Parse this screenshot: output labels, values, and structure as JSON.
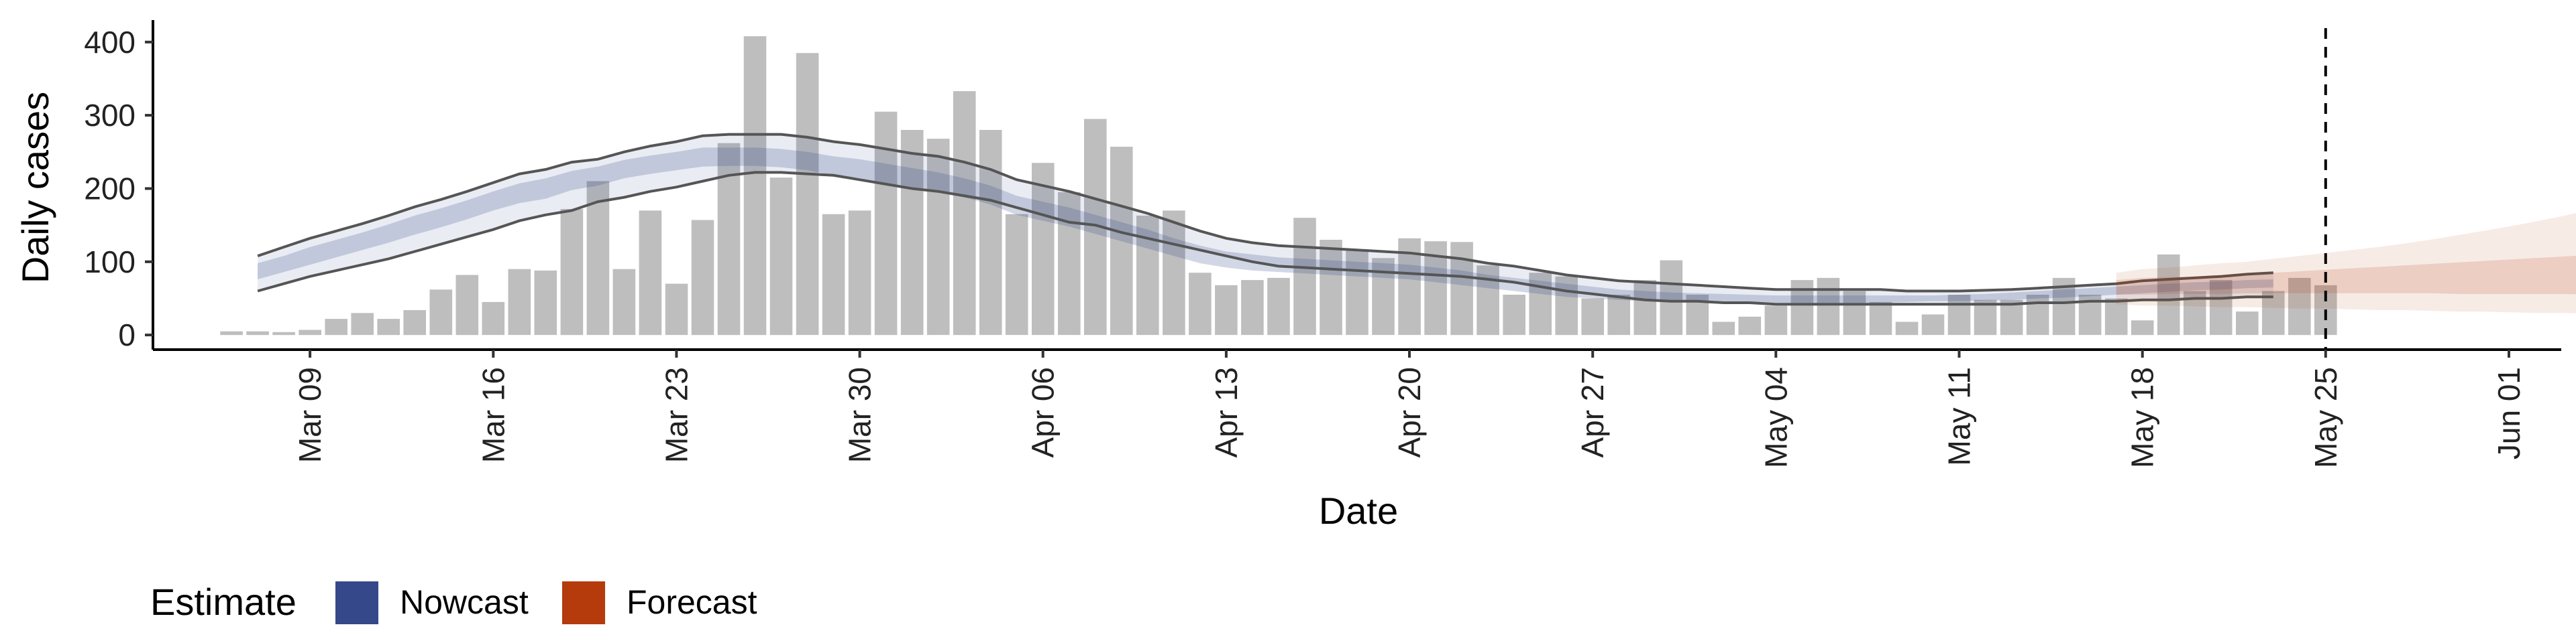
{
  "chart_data": {
    "type": "bar",
    "xlabel": "Date",
    "ylabel": "Daily cases",
    "ylim": [
      -20,
      430
    ],
    "y_ticks": [
      0,
      100,
      200,
      300,
      400
    ],
    "x_ticks": [
      "Mar 09",
      "Mar 16",
      "Mar 23",
      "Mar 30",
      "Apr 06",
      "Apr 13",
      "Apr 20",
      "Apr 27",
      "May 04",
      "May 11",
      "May 18",
      "May 25",
      "Jun 01"
    ],
    "xlim_dates": [
      "2020-03-03",
      "2020-06-03"
    ],
    "x_ticks_dates": [
      "2020-03-09",
      "2020-03-16",
      "2020-03-23",
      "2020-03-30",
      "2020-04-06",
      "2020-04-13",
      "2020-04-20",
      "2020-04-27",
      "2020-05-04",
      "2020-05-11",
      "2020-05-18",
      "2020-05-25",
      "2020-06-01"
    ],
    "vline_date": "2020-05-25",
    "grid": false,
    "legend": {
      "title": "Estimate",
      "position": "bottom",
      "items": [
        {
          "label": "Nowcast",
          "color": "#34488a"
        },
        {
          "label": "Forecast",
          "color": "#b53a0c"
        }
      ]
    },
    "colors": {
      "bars": "#bebebe",
      "nowcast": "#34488a",
      "forecast": "#b53a0c",
      "outline": "#555555",
      "vline": "#000000"
    },
    "bars": {
      "start_date": "2020-03-06",
      "values": [
        5,
        5,
        4,
        7,
        22,
        30,
        22,
        34,
        62,
        82,
        45,
        90,
        88,
        172,
        210,
        90,
        170,
        70,
        157,
        262,
        408,
        215,
        385,
        165,
        170,
        305,
        280,
        268,
        333,
        280,
        165,
        235,
        195,
        295,
        257,
        163,
        170,
        85,
        68,
        75,
        78,
        160,
        130,
        115,
        105,
        132,
        128,
        127,
        95,
        55,
        85,
        80,
        50,
        55,
        75,
        102,
        55,
        18,
        25,
        40,
        75,
        78,
        60,
        45,
        18,
        28,
        55,
        48,
        48,
        55,
        78,
        55,
        50,
        20,
        110,
        60,
        75,
        32,
        60,
        78,
        68
      ]
    },
    "series": [
      {
        "name": "Nowcast",
        "start_date": "2020-03-07",
        "outer_upper": [
          108,
          120,
          132,
          142,
          152,
          163,
          175,
          185,
          196,
          208,
          220,
          226,
          236,
          240,
          250,
          258,
          264,
          272,
          274,
          274,
          274,
          270,
          264,
          260,
          254,
          248,
          244,
          236,
          226,
          212,
          204,
          196,
          186,
          176,
          166,
          154,
          142,
          132,
          126,
          122,
          120,
          118,
          116,
          114,
          112,
          108,
          104,
          98,
          94,
          88,
          82,
          78,
          74,
          72,
          70,
          68,
          66,
          64,
          62,
          62,
          62,
          62,
          62,
          60,
          60,
          60,
          61,
          62,
          64,
          66,
          68,
          70,
          74,
          76,
          78,
          80,
          83,
          85
        ],
        "inner_upper": [
          98,
          108,
          120,
          130,
          140,
          151,
          163,
          173,
          184,
          196,
          207,
          214,
          224,
          230,
          239,
          245,
          250,
          256,
          256,
          256,
          254,
          250,
          244,
          240,
          234,
          228,
          222,
          214,
          204,
          190,
          182,
          174,
          164,
          154,
          144,
          132,
          122,
          114,
          110,
          106,
          104,
          102,
          100,
          98,
          96,
          92,
          88,
          82,
          78,
          74,
          70,
          66,
          62,
          60,
          58,
          57,
          56,
          55,
          54,
          54,
          54,
          54,
          54,
          54,
          54,
          55,
          56,
          58,
          60,
          62,
          64,
          66,
          68,
          70,
          72,
          73,
          75,
          76
        ],
        "inner_lower": [
          76,
          86,
          96,
          106,
          116,
          126,
          137,
          147,
          158,
          170,
          180,
          186,
          198,
          204,
          214,
          220,
          225,
          230,
          231,
          231,
          229,
          225,
          218,
          214,
          208,
          202,
          196,
          188,
          178,
          164,
          156,
          148,
          138,
          128,
          118,
          108,
          98,
          92,
          88,
          86,
          84,
          82,
          80,
          78,
          76,
          72,
          68,
          64,
          60,
          56,
          52,
          50,
          48,
          46,
          46,
          45,
          45,
          44,
          44,
          44,
          44,
          44,
          44,
          45,
          46,
          46,
          47,
          48,
          50,
          51,
          53,
          55,
          57,
          59,
          61,
          62,
          64,
          65
        ],
        "outer_lower": [
          60,
          70,
          80,
          88,
          96,
          104,
          114,
          124,
          134,
          144,
          156,
          164,
          170,
          182,
          188,
          196,
          202,
          210,
          218,
          222,
          222,
          220,
          218,
          212,
          206,
          200,
          196,
          190,
          184,
          174,
          164,
          154,
          150,
          140,
          132,
          124,
          116,
          108,
          100,
          94,
          92,
          90,
          88,
          86,
          84,
          82,
          80,
          76,
          72,
          66,
          60,
          56,
          52,
          48,
          46,
          46,
          44,
          44,
          42,
          42,
          42,
          42,
          42,
          42,
          42,
          42,
          42,
          42,
          44,
          44,
          46,
          46,
          48,
          48,
          50,
          50,
          52,
          52
        ]
      },
      {
        "name": "Forecast",
        "start_date": "2020-05-17",
        "outer_upper": [
          85,
          90,
          92,
          95,
          98,
          100,
          104,
          108,
          112,
          116,
          120,
          125,
          130,
          136,
          142,
          148,
          155,
          162,
          170,
          178,
          185,
          193
        ],
        "inner_upper": [
          75,
          78,
          79,
          80,
          82,
          83,
          85,
          87,
          89,
          91,
          93,
          95,
          97,
          99,
          101,
          103,
          105,
          107,
          109,
          111,
          113,
          115
        ],
        "inner_lower": [
          55,
          55,
          56,
          56,
          56,
          57,
          57,
          57,
          57,
          57,
          57,
          57,
          57,
          56,
          56,
          56,
          56,
          56,
          55,
          55,
          55,
          55
        ],
        "outer_lower": [
          42,
          40,
          40,
          39,
          38,
          38,
          37,
          36,
          36,
          35,
          34,
          34,
          33,
          32,
          32,
          31,
          30,
          30,
          29,
          28,
          28,
          27
        ]
      }
    ]
  }
}
